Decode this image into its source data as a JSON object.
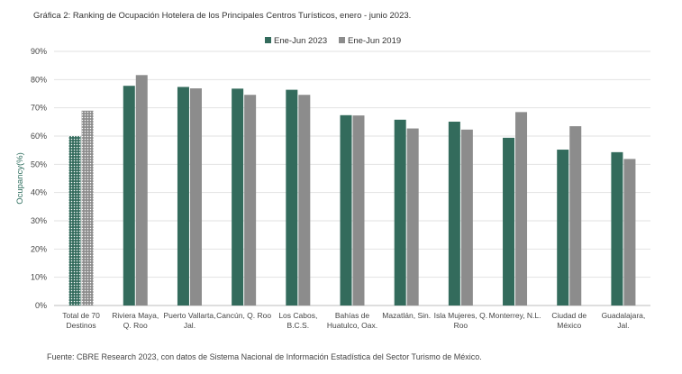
{
  "chart_data": {
    "type": "bar",
    "title": "Gráfica 2: Ranking de Ocupación Hotelera de los Principales Centros Turísticos, enero - junio 2023.",
    "ylabel": "Ocupancy(%)",
    "xlabel": "",
    "ylim": [
      0,
      90
    ],
    "y_ticks": [
      "0%",
      "10%",
      "20%",
      "30%",
      "40%",
      "50%",
      "60%",
      "70%",
      "80%",
      "90%"
    ],
    "grid": true,
    "legend_position": "top-center",
    "categories": [
      [
        "Total de 70",
        "Destinos"
      ],
      [
        "Riviera Maya,",
        "Q. Roo"
      ],
      [
        "Puerto Vallarta,",
        "Jal."
      ],
      [
        "Cancún, Q. Roo"
      ],
      [
        "Los Cabos,",
        "B.C.S."
      ],
      [
        "Bahías de",
        "Huatulco, Oax."
      ],
      [
        "Mazatlán, Sin."
      ],
      [
        "Isla Mujeres, Q.",
        "Roo"
      ],
      [
        "Monterrey, N.L."
      ],
      [
        "Ciudad de",
        "México"
      ],
      [
        "Guadalajara,",
        "Jal."
      ]
    ],
    "series": [
      {
        "name": "Ene-Jun 2023",
        "color": "#336b5c",
        "values": [
          60.0,
          77.8,
          77.4,
          76.8,
          76.4,
          67.4,
          65.8,
          65.1,
          59.4,
          55.2,
          54.3
        ]
      },
      {
        "name": "Ene-Jun 2019",
        "color": "#8c8c8c",
        "values": [
          69.0,
          81.6,
          76.9,
          74.6,
          74.6,
          67.3,
          62.7,
          62.3,
          68.5,
          63.5,
          51.9
        ]
      }
    ]
  },
  "source_note": "Fuente: CBRE Research 2023, con datos de Sistema Nacional de Información Estadística del Sector Turismo de México."
}
